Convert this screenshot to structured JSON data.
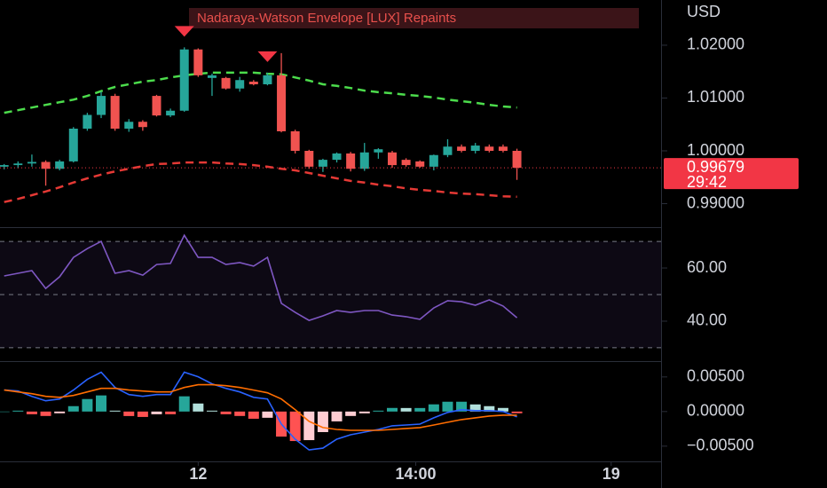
{
  "chart_data": [
    {
      "type": "candlestick",
      "title": "Nadaraya-Watson Envelope [LUX] Repaints",
      "currency": "USD",
      "up_color": "#26a69a",
      "down_color": "#f05350",
      "open": [
        0.997,
        0.9973,
        0.9976,
        0.9979,
        0.9966,
        0.998,
        1.0042,
        1.0068,
        1.0104,
        1.0042,
        1.0055,
        1.0104,
        1.0067,
        1.0076,
        1.0192,
        1.0138,
        1.0138,
        1.0118,
        1.0131,
        1.0126,
        1.0143,
        1.0037,
        1.0,
        0.997,
        0.9983,
        0.9995,
        0.9966,
        0.9997,
        0.9997,
        0.9983,
        0.998,
        0.997,
        0.9992,
        1.0008,
        1.0,
        1.0008,
        1.0008,
        1.0
      ],
      "high": [
        0.9975,
        0.998,
        0.9993,
        0.9982,
        0.9983,
        1.0045,
        1.0072,
        1.0112,
        1.0108,
        1.006,
        1.0058,
        1.0106,
        1.008,
        1.0196,
        1.0194,
        1.0146,
        1.014,
        1.014,
        1.0134,
        1.0148,
        1.0185,
        1.004,
        1.0002,
        0.9985,
        0.9997,
        0.9998,
        1.0015,
        1.0005,
        1.0,
        0.9986,
        0.9982,
        0.9993,
        1.0022,
        1.0012,
        1.0015,
        1.0012,
        1.0012,
        1.0004
      ],
      "low": [
        0.9965,
        0.9967,
        0.997,
        0.9934,
        0.9963,
        0.9978,
        1.0038,
        1.0062,
        1.0038,
        1.0036,
        1.0038,
        1.0065,
        1.0064,
        1.0074,
        1.014,
        1.0104,
        1.0116,
        1.0112,
        1.0124,
        1.0124,
        1.0035,
        0.9995,
        0.9966,
        0.996,
        0.9978,
        0.9961,
        0.9962,
        0.9985,
        0.9968,
        0.997,
        0.9968,
        0.9963,
        0.9988,
        0.9997,
        0.9995,
        0.9997,
        0.9997,
        0.9945
      ],
      "close": [
        0.9973,
        0.9976,
        0.9979,
        0.9966,
        0.998,
        1.0042,
        1.0068,
        1.0104,
        1.0042,
        1.0055,
        1.0045,
        1.0067,
        1.0076,
        1.0192,
        1.0143,
        1.0143,
        1.0118,
        1.0134,
        1.0126,
        1.0143,
        1.0037,
        1.0,
        0.997,
        0.9983,
        0.9995,
        0.9966,
        0.9997,
        1.0003,
        0.9973,
        0.9973,
        0.997,
        0.9992,
        1.0008,
        1.0,
        1.001,
        1.0,
        1.0,
        0.9968
      ],
      "envelope_upper": {
        "color": "#4cdc4c",
        "values": [
          1.0072,
          1.0077,
          1.0082,
          1.0087,
          1.0092,
          1.0097,
          1.0104,
          1.0113,
          1.0121,
          1.0126,
          1.0131,
          1.0134,
          1.0139,
          1.0143,
          1.0146,
          1.0148,
          1.0148,
          1.0148,
          1.0148,
          1.0146,
          1.0145,
          1.0139,
          1.0133,
          1.0126,
          1.0123,
          1.0119,
          1.0114,
          1.0111,
          1.0109,
          1.0106,
          1.0104,
          1.0101,
          1.0097,
          1.0094,
          1.0091,
          1.0087,
          1.0084,
          1.0082
        ]
      },
      "envelope_lower": {
        "color": "#e53935",
        "values": [
          0.9903,
          0.9909,
          0.9916,
          0.9923,
          0.9931,
          0.994,
          0.9948,
          0.9955,
          0.9961,
          0.9966,
          0.9971,
          0.9975,
          0.9976,
          0.9978,
          0.9978,
          0.9978,
          0.9976,
          0.9975,
          0.9973,
          0.997,
          0.9966,
          0.9963,
          0.9958,
          0.9953,
          0.9948,
          0.9943,
          0.994,
          0.9936,
          0.9933,
          0.9929,
          0.9926,
          0.9924,
          0.9921,
          0.9919,
          0.9918,
          0.9916,
          0.9914,
          0.9913
        ]
      },
      "sell_signals": [
        13,
        19
      ],
      "signal_color": "#f23645",
      "last_price": 0.99679,
      "countdown": "29:42",
      "last_price_color": "#f23645",
      "xlim": [
        -0.3,
        47.4
      ],
      "ylim": [
        0.98572,
        1.02856
      ],
      "yticks": [
        {
          "value": 1.02,
          "label": "1.02000"
        },
        {
          "value": 1.01,
          "label": "1.01000"
        },
        {
          "value": 1.0,
          "label": "1.00000"
        },
        {
          "value": 0.99,
          "label": "0.99000"
        }
      ]
    },
    {
      "type": "line",
      "series": [
        {
          "color": "#7e57c2",
          "values": [
            57.0,
            58.0,
            59.0,
            52.3,
            56.7,
            64.0,
            67.3,
            70.0,
            58.0,
            59.0,
            57.3,
            61.3,
            61.7,
            72.3,
            64.0,
            64.0,
            61.3,
            62.0,
            60.7,
            64.0,
            46.7,
            43.3,
            40.3,
            42.0,
            44.0,
            43.3,
            44.0,
            44.0,
            42.3,
            41.7,
            40.7,
            45.0,
            47.7,
            47.3,
            46.0,
            48.0,
            45.7,
            41.3
          ]
        }
      ],
      "bands": [
        70,
        50,
        30
      ],
      "band_color": "#7e57c2",
      "xlim": [
        -0.3,
        47.4
      ],
      "ylim": [
        25.3,
        74.7
      ],
      "yticks": [
        {
          "value": 60,
          "label": "60.00"
        },
        {
          "value": 40,
          "label": "40.00"
        }
      ]
    },
    {
      "type": "macd",
      "series": [
        {
          "color": "#2962ff",
          "values": [
            0.0031,
            0.00297,
            0.00219,
            0.00155,
            0.00181,
            0.0031,
            0.00465,
            0.00568,
            0.00348,
            0.00245,
            0.00219,
            0.00245,
            0.00245,
            0.00568,
            0.00503,
            0.004,
            0.00335,
            0.00284,
            0.00206,
            0.00181,
            -0.00181,
            -0.004,
            -0.00555,
            -0.00529,
            -0.004,
            -0.00335,
            -0.00297,
            -0.00258,
            -0.00206,
            -0.00194,
            -0.00181,
            -0.0009,
            -0.00013,
            0.00026,
            0.00013,
            0.00013,
            0,
            -0.00077
          ]
        },
        {
          "color": "#ff6d00",
          "values": [
            0.0031,
            0.00284,
            0.00258,
            0.00219,
            0.00206,
            0.00232,
            0.00284,
            0.00335,
            0.00335,
            0.0031,
            0.00297,
            0.00284,
            0.00284,
            0.00348,
            0.00387,
            0.00387,
            0.00374,
            0.00348,
            0.0031,
            0.00271,
            0.00181,
            0.00026,
            -0.00142,
            -0.00232,
            -0.00258,
            -0.00271,
            -0.00271,
            -0.00271,
            -0.00258,
            -0.00245,
            -0.00232,
            -0.00194,
            -0.00155,
            -0.00116,
            -0.0009,
            -0.00065,
            -0.00052,
            -0.00052
          ]
        }
      ],
      "histogram": {
        "values": [
          0,
          0.00013,
          -0.00039,
          -0.00064,
          -0.00025,
          0.00078,
          0.00181,
          0.00233,
          0.00013,
          -0.00065,
          -0.00078,
          -0.00039,
          -0.00039,
          0.0022,
          0.00116,
          0.00013,
          -0.00039,
          -0.00064,
          -0.00104,
          -0.0009,
          -0.00362,
          -0.00426,
          -0.00413,
          -0.00297,
          -0.00142,
          -0.00064,
          -0.00026,
          0.00013,
          0.00052,
          0.00051,
          0.00051,
          0.00104,
          0.00142,
          0.00142,
          0.00103,
          0.00078,
          0.00052,
          -0.00025
        ],
        "colors": [
          "#26a69a",
          "#b2dfdb",
          "#ff5252",
          "#ffcdd2"
        ]
      },
      "xlim": [
        -0.3,
        47.4
      ],
      "ylim": [
        -0.0072,
        0.0069
      ],
      "yticks": [
        {
          "value": 0.005,
          "label": "0.00500"
        },
        {
          "value": 0,
          "label": "0.00000"
        },
        {
          "value": -0.005,
          "label": "−0.00500"
        }
      ],
      "xticks": [
        {
          "value": 14,
          "label": "12"
        },
        {
          "value": 29.7,
          "label": "14:00"
        },
        {
          "value": 43.8,
          "label": "19"
        }
      ]
    }
  ]
}
